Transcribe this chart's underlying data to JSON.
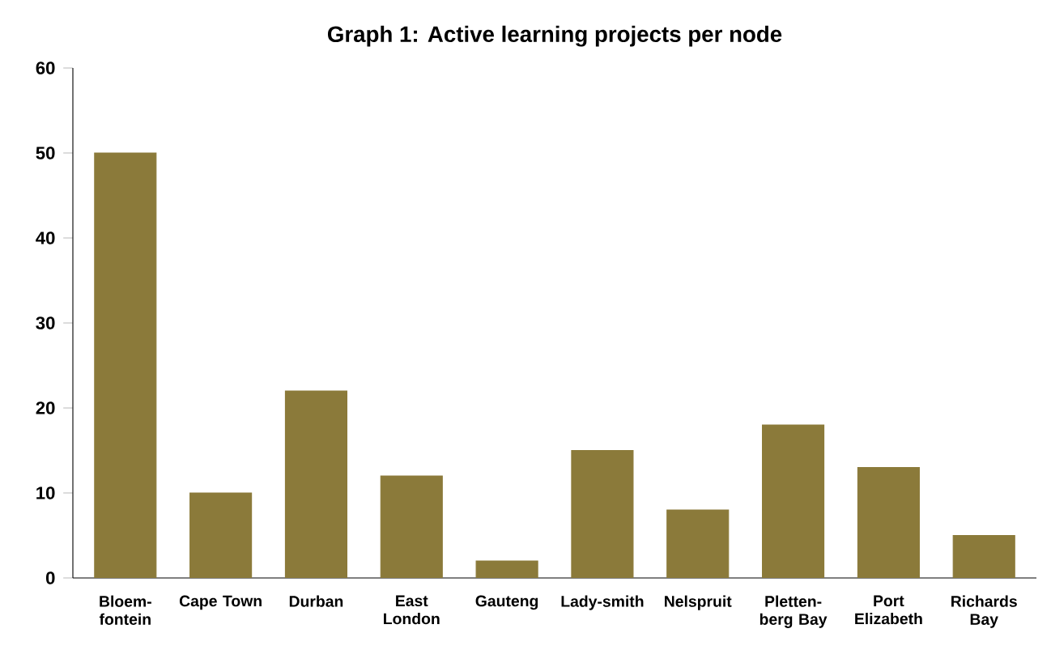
{
  "chart_data": {
    "type": "bar",
    "title": "Graph 1: Active learning projects per node",
    "categories": [
      "Bloem-fontein",
      "Cape Town",
      "Durban",
      "East London",
      "Gauteng",
      "Lady-smith",
      "Nelspruit",
      "Pletten-berg Bay",
      "Port Elizabeth",
      "Richards Bay"
    ],
    "values": [
      50,
      10,
      22,
      12,
      2,
      15,
      8,
      18,
      13,
      5
    ],
    "color": "#8b7a3a",
    "ylim": [
      0,
      60
    ],
    "yticks": [
      0,
      10,
      20,
      30,
      40,
      50,
      60
    ],
    "grid": false
  }
}
